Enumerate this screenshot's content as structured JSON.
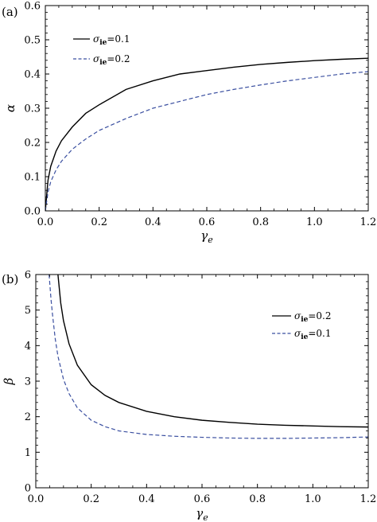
{
  "chart_data": [
    {
      "type": "line",
      "panel_label": "(a)",
      "xlabel": "γe",
      "ylabel": "α",
      "xlim": [
        0,
        1.2
      ],
      "ylim": [
        0,
        0.6
      ],
      "xticks": [
        "0.0",
        "0.2",
        "0.4",
        "0.6",
        "0.8",
        "1.0",
        "1.2"
      ],
      "yticks": [
        "0.0",
        "0.1",
        "0.2",
        "0.3",
        "0.4",
        "0.5",
        "0.6"
      ],
      "legend_position": "top-left",
      "series": [
        {
          "name": "σie=0.1",
          "style": "solid",
          "color": "#000000",
          "x": [
            0.0,
            0.01,
            0.02,
            0.04,
            0.06,
            0.1,
            0.15,
            0.2,
            0.3,
            0.4,
            0.5,
            0.6,
            0.7,
            0.8,
            0.9,
            1.0,
            1.1,
            1.2
          ],
          "y": [
            0.0,
            0.09,
            0.13,
            0.175,
            0.205,
            0.245,
            0.285,
            0.31,
            0.355,
            0.38,
            0.4,
            0.41,
            0.42,
            0.428,
            0.434,
            0.439,
            0.443,
            0.446
          ]
        },
        {
          "name": "σie=0.2",
          "style": "dashed",
          "color": "#3a4fa0",
          "x": [
            0.0,
            0.01,
            0.02,
            0.04,
            0.06,
            0.1,
            0.15,
            0.2,
            0.3,
            0.4,
            0.5,
            0.6,
            0.7,
            0.8,
            0.9,
            1.0,
            1.1,
            1.2
          ],
          "y": [
            0.0,
            0.055,
            0.085,
            0.12,
            0.145,
            0.18,
            0.21,
            0.235,
            0.27,
            0.3,
            0.32,
            0.34,
            0.355,
            0.368,
            0.38,
            0.39,
            0.4,
            0.407
          ]
        }
      ]
    },
    {
      "type": "line",
      "panel_label": "(b)",
      "xlabel": "γe",
      "ylabel": "β",
      "xlim": [
        0,
        1.2
      ],
      "ylim": [
        0,
        6
      ],
      "xticks": [
        "0.0",
        "0.2",
        "0.4",
        "0.6",
        "0.8",
        "1.0",
        "1.2"
      ],
      "yticks": [
        "0",
        "1",
        "2",
        "3",
        "4",
        "5",
        "6"
      ],
      "legend_position": "top-right",
      "series": [
        {
          "name": "σie=0.2",
          "style": "solid",
          "color": "#000000",
          "x": [
            0.08,
            0.09,
            0.1,
            0.12,
            0.15,
            0.2,
            0.25,
            0.3,
            0.4,
            0.5,
            0.6,
            0.7,
            0.8,
            0.9,
            1.0,
            1.1,
            1.2
          ],
          "y": [
            6.0,
            5.2,
            4.7,
            4.05,
            3.45,
            2.9,
            2.6,
            2.4,
            2.15,
            2.0,
            1.9,
            1.84,
            1.79,
            1.76,
            1.74,
            1.72,
            1.71
          ]
        },
        {
          "name": "σie=0.1",
          "style": "dashed",
          "color": "#3a4fa0",
          "x": [
            0.048,
            0.055,
            0.06,
            0.07,
            0.08,
            0.1,
            0.12,
            0.15,
            0.2,
            0.25,
            0.3,
            0.4,
            0.5,
            0.6,
            0.7,
            0.8,
            0.9,
            1.0,
            1.1,
            1.2
          ],
          "y": [
            6.0,
            5.3,
            4.9,
            4.2,
            3.7,
            3.05,
            2.65,
            2.25,
            1.9,
            1.72,
            1.6,
            1.5,
            1.45,
            1.42,
            1.4,
            1.39,
            1.39,
            1.4,
            1.41,
            1.43
          ]
        }
      ]
    }
  ]
}
